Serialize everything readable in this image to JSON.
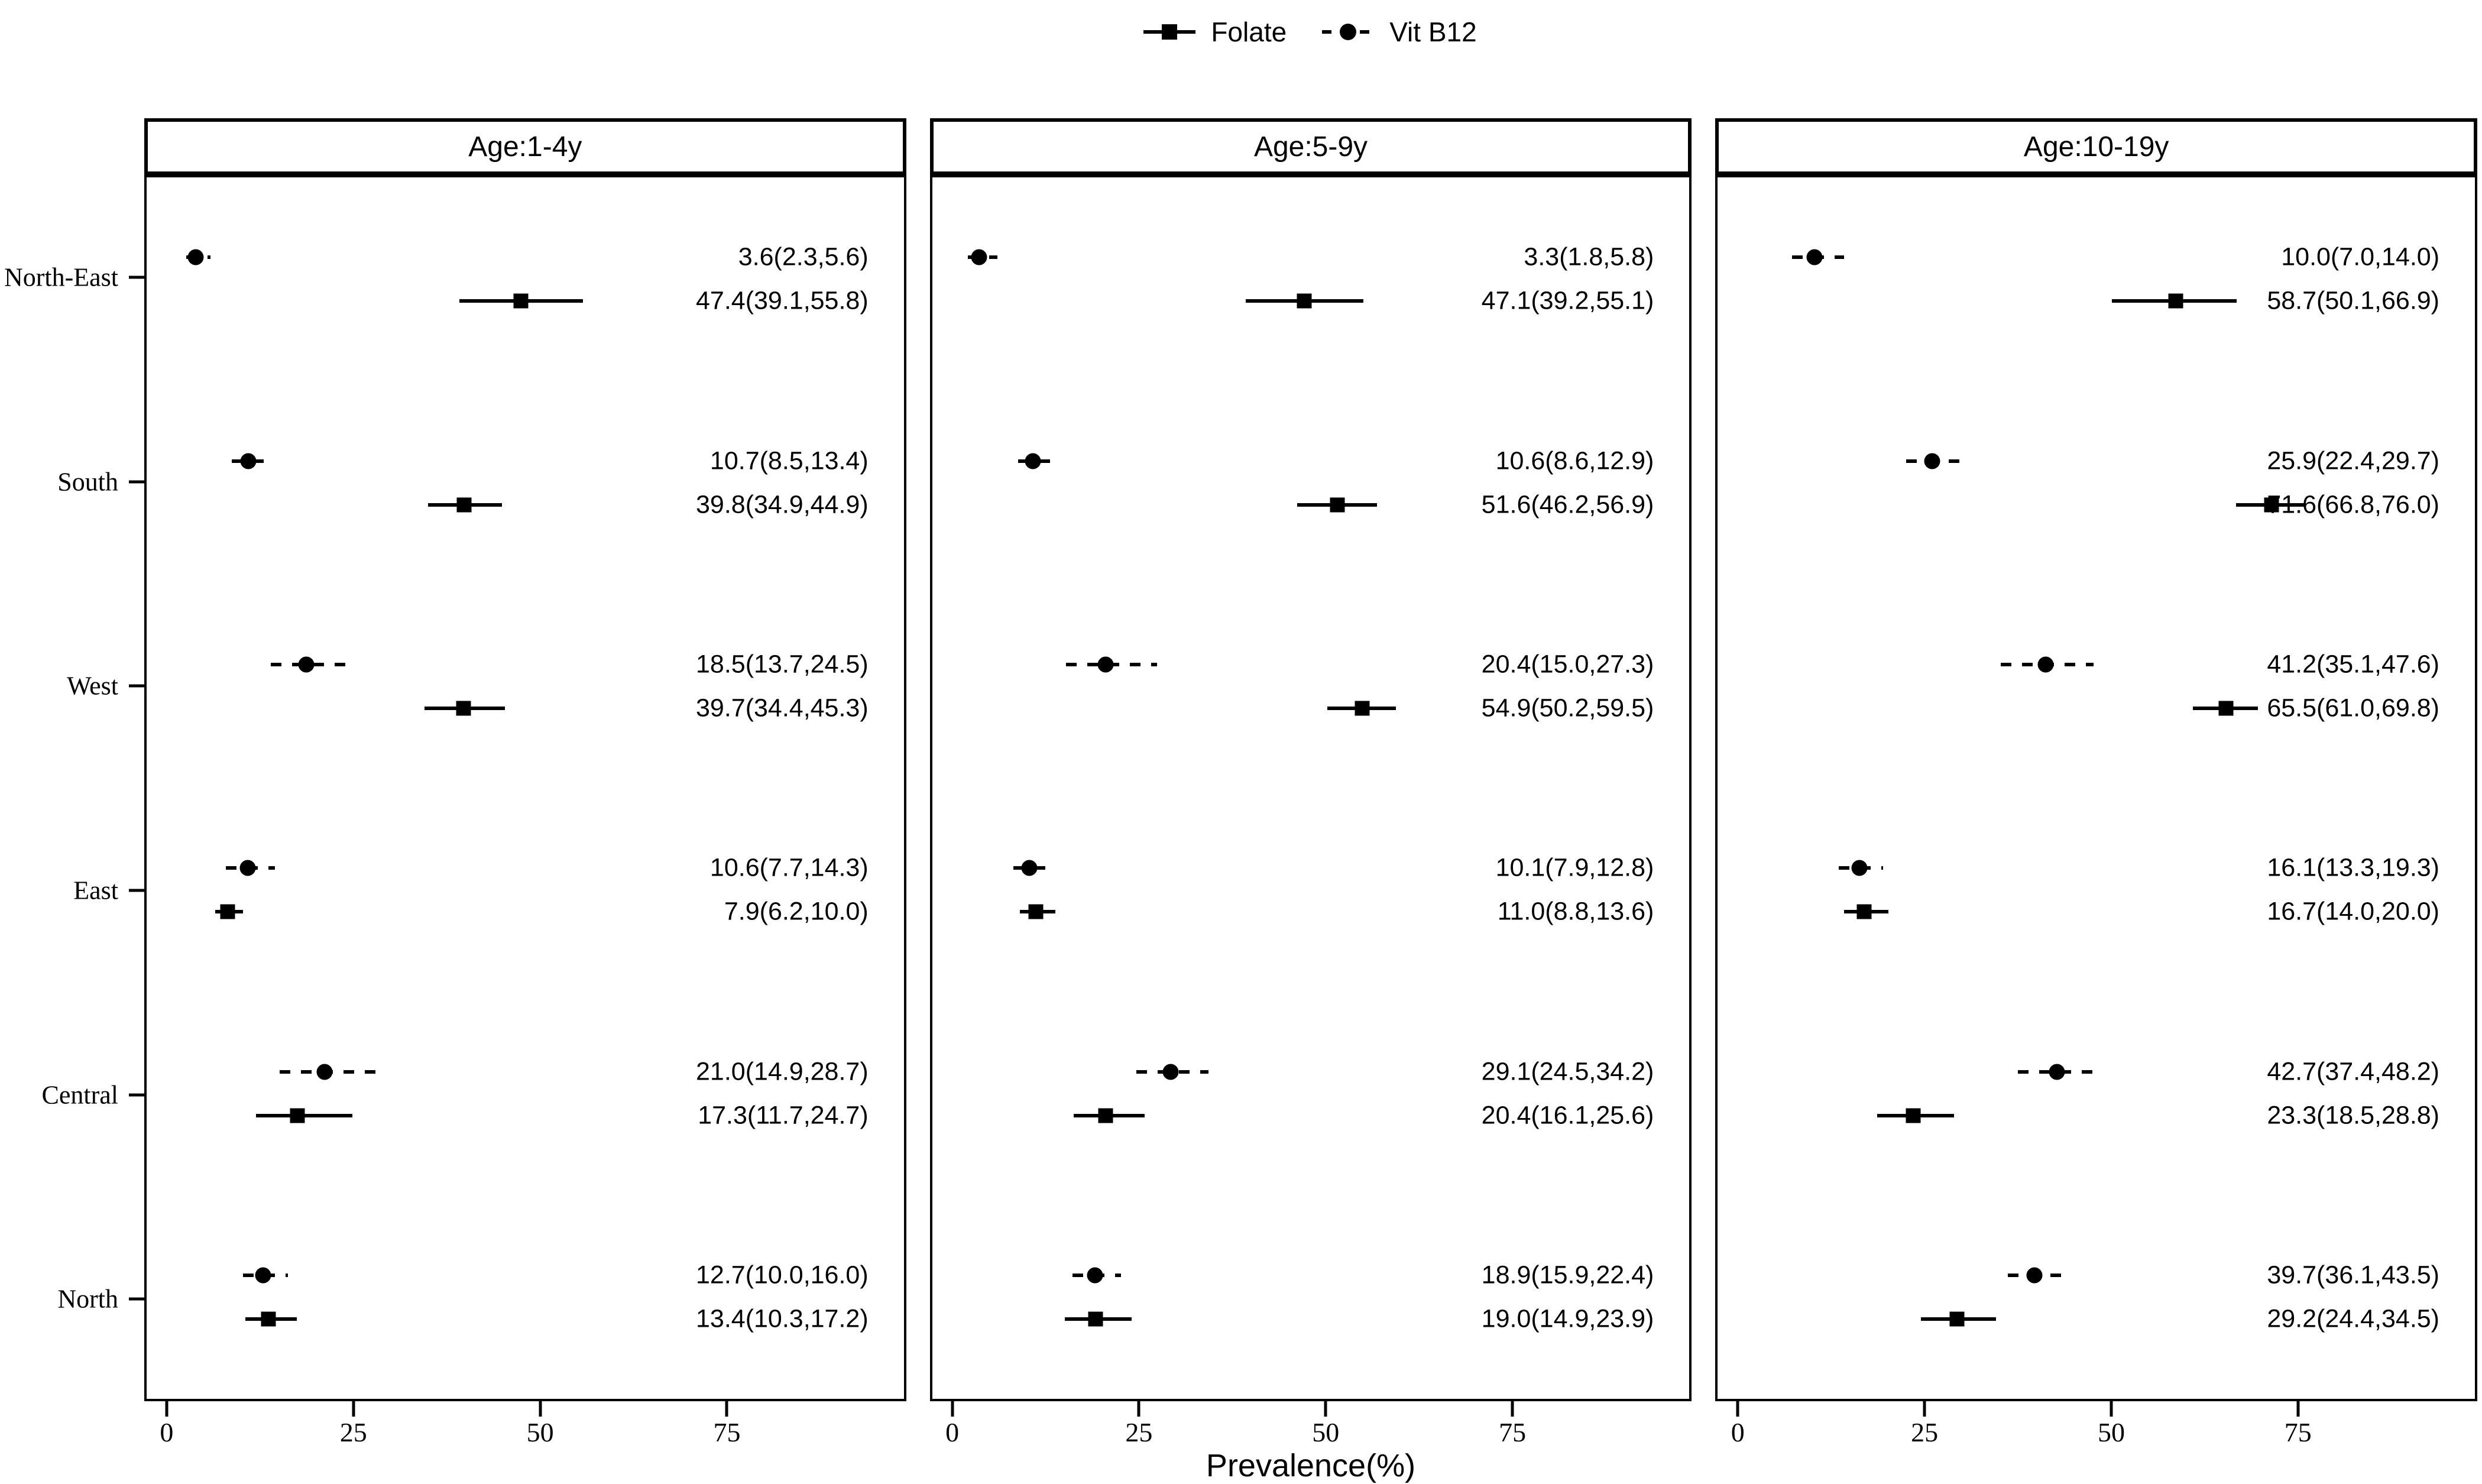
{
  "legend": {
    "items": [
      {
        "label": "Folate",
        "marker": "square",
        "line": "solid"
      },
      {
        "label": "Vit B12",
        "marker": "circle",
        "line": "dashed"
      }
    ],
    "position": "top"
  },
  "axis": {
    "x_label": "Prevalence(%)",
    "x_ticks": [
      "0",
      "25",
      "50",
      "75"
    ],
    "x_tick_values": [
      0,
      25,
      50,
      75
    ],
    "x_domain": [
      -3,
      99
    ],
    "regions": [
      "North-East",
      "South",
      "West",
      "East",
      "Central",
      "North"
    ]
  },
  "colors": {
    "foreground": "#000000",
    "background": "#ffffff",
    "panel_border": "#000000"
  },
  "chart_data": {
    "type": "scatter",
    "subtype": "forest-plot-dot-ci",
    "grid": false,
    "legend_position": "top",
    "xlabel": "Prevalence(%)",
    "xlim": [
      -3,
      99
    ],
    "categories": [
      "North-East",
      "South",
      "West",
      "East",
      "Central",
      "North"
    ],
    "series_order": [
      "Vit B12",
      "Folate"
    ],
    "facets": [
      {
        "title": "Age:1-4y",
        "rows": [
          {
            "region": "North-East",
            "series": [
              {
                "name": "Vit B12",
                "est": 3.6,
                "lo": 2.3,
                "hi": 5.6,
                "label": "3.6(2.3,5.6)"
              },
              {
                "name": "Folate",
                "est": 47.4,
                "lo": 39.1,
                "hi": 55.8,
                "label": "47.4(39.1,55.8)"
              }
            ]
          },
          {
            "region": "South",
            "series": [
              {
                "name": "Vit B12",
                "est": 10.7,
                "lo": 8.5,
                "hi": 13.4,
                "label": "10.7(8.5,13.4)"
              },
              {
                "name": "Folate",
                "est": 39.8,
                "lo": 34.9,
                "hi": 44.9,
                "label": "39.8(34.9,44.9)"
              }
            ]
          },
          {
            "region": "West",
            "series": [
              {
                "name": "Vit B12",
                "est": 18.5,
                "lo": 13.7,
                "hi": 24.5,
                "label": "18.5(13.7,24.5)"
              },
              {
                "name": "Folate",
                "est": 39.7,
                "lo": 34.4,
                "hi": 45.3,
                "label": "39.7(34.4,45.3)"
              }
            ]
          },
          {
            "region": "East",
            "series": [
              {
                "name": "Vit B12",
                "est": 10.6,
                "lo": 7.7,
                "hi": 14.3,
                "label": "10.6(7.7,14.3)"
              },
              {
                "name": "Folate",
                "est": 7.9,
                "lo": 6.2,
                "hi": 10.0,
                "label": "7.9(6.2,10.0)"
              }
            ]
          },
          {
            "region": "Central",
            "series": [
              {
                "name": "Vit B12",
                "est": 21.0,
                "lo": 14.9,
                "hi": 28.7,
                "label": "21.0(14.9,28.7)"
              },
              {
                "name": "Folate",
                "est": 17.3,
                "lo": 11.7,
                "hi": 24.7,
                "label": "17.3(11.7,24.7)"
              }
            ]
          },
          {
            "region": "North",
            "series": [
              {
                "name": "Vit B12",
                "est": 12.7,
                "lo": 10.0,
                "hi": 16.0,
                "label": "12.7(10.0,16.0)"
              },
              {
                "name": "Folate",
                "est": 13.4,
                "lo": 10.3,
                "hi": 17.2,
                "label": "13.4(10.3,17.2)"
              }
            ]
          }
        ]
      },
      {
        "title": "Age:5-9y",
        "rows": [
          {
            "region": "North-East",
            "series": [
              {
                "name": "Vit B12",
                "est": 3.3,
                "lo": 1.8,
                "hi": 5.8,
                "label": "3.3(1.8,5.8)"
              },
              {
                "name": "Folate",
                "est": 47.1,
                "lo": 39.2,
                "hi": 55.1,
                "label": "47.1(39.2,55.1)"
              }
            ]
          },
          {
            "region": "South",
            "series": [
              {
                "name": "Vit B12",
                "est": 10.6,
                "lo": 8.6,
                "hi": 12.9,
                "label": "10.6(8.6,12.9)"
              },
              {
                "name": "Folate",
                "est": 51.6,
                "lo": 46.2,
                "hi": 56.9,
                "label": "51.6(46.2,56.9)"
              }
            ]
          },
          {
            "region": "West",
            "series": [
              {
                "name": "Vit B12",
                "est": 20.4,
                "lo": 15.0,
                "hi": 27.3,
                "label": "20.4(15.0,27.3)"
              },
              {
                "name": "Folate",
                "est": 54.9,
                "lo": 50.2,
                "hi": 59.5,
                "label": "54.9(50.2,59.5)"
              }
            ]
          },
          {
            "region": "East",
            "series": [
              {
                "name": "Vit B12",
                "est": 10.1,
                "lo": 7.9,
                "hi": 12.8,
                "label": "10.1(7.9,12.8)"
              },
              {
                "name": "Folate",
                "est": 11.0,
                "lo": 8.8,
                "hi": 13.6,
                "label": "11.0(8.8,13.6)"
              }
            ]
          },
          {
            "region": "Central",
            "series": [
              {
                "name": "Vit B12",
                "est": 29.1,
                "lo": 24.5,
                "hi": 34.2,
                "label": "29.1(24.5,34.2)"
              },
              {
                "name": "Folate",
                "est": 20.4,
                "lo": 16.1,
                "hi": 25.6,
                "label": "20.4(16.1,25.6)"
              }
            ]
          },
          {
            "region": "North",
            "series": [
              {
                "name": "Vit B12",
                "est": 18.9,
                "lo": 15.9,
                "hi": 22.4,
                "label": "18.9(15.9,22.4)"
              },
              {
                "name": "Folate",
                "est": 19.0,
                "lo": 14.9,
                "hi": 23.9,
                "label": "19.0(14.9,23.9)"
              }
            ]
          }
        ]
      },
      {
        "title": "Age:10-19y",
        "rows": [
          {
            "region": "North-East",
            "series": [
              {
                "name": "Vit B12",
                "est": 10.0,
                "lo": 7.0,
                "hi": 14.0,
                "label": "10.0(7.0,14.0)"
              },
              {
                "name": "Folate",
                "est": 58.7,
                "lo": 50.1,
                "hi": 66.9,
                "label": "58.7(50.1,66.9)"
              }
            ]
          },
          {
            "region": "South",
            "series": [
              {
                "name": "Vit B12",
                "est": 25.9,
                "lo": 22.4,
                "hi": 29.7,
                "label": "25.9(22.4,29.7)"
              },
              {
                "name": "Folate",
                "est": 71.6,
                "lo": 66.8,
                "hi": 76.0,
                "label": "71.6(66.8,76.0)"
              }
            ]
          },
          {
            "region": "West",
            "series": [
              {
                "name": "Vit B12",
                "est": 41.2,
                "lo": 35.1,
                "hi": 47.6,
                "label": "41.2(35.1,47.6)"
              },
              {
                "name": "Folate",
                "est": 65.5,
                "lo": 61.0,
                "hi": 69.8,
                "label": "65.5(61.0,69.8)"
              }
            ]
          },
          {
            "region": "East",
            "series": [
              {
                "name": "Vit B12",
                "est": 16.1,
                "lo": 13.3,
                "hi": 19.3,
                "label": "16.1(13.3,19.3)"
              },
              {
                "name": "Folate",
                "est": 16.7,
                "lo": 14.0,
                "hi": 20.0,
                "label": "16.7(14.0,20.0)"
              }
            ]
          },
          {
            "region": "Central",
            "series": [
              {
                "name": "Vit B12",
                "est": 42.7,
                "lo": 37.4,
                "hi": 48.2,
                "label": "42.7(37.4,48.2)"
              },
              {
                "name": "Folate",
                "est": 23.3,
                "lo": 18.5,
                "hi": 28.8,
                "label": "23.3(18.5,28.8)"
              }
            ]
          },
          {
            "region": "North",
            "series": [
              {
                "name": "Vit B12",
                "est": 39.7,
                "lo": 36.1,
                "hi": 43.5,
                "label": "39.7(36.1,43.5)"
              },
              {
                "name": "Folate",
                "est": 29.2,
                "lo": 24.4,
                "hi": 34.5,
                "label": "29.2(24.4,34.5)"
              }
            ]
          }
        ]
      }
    ]
  }
}
